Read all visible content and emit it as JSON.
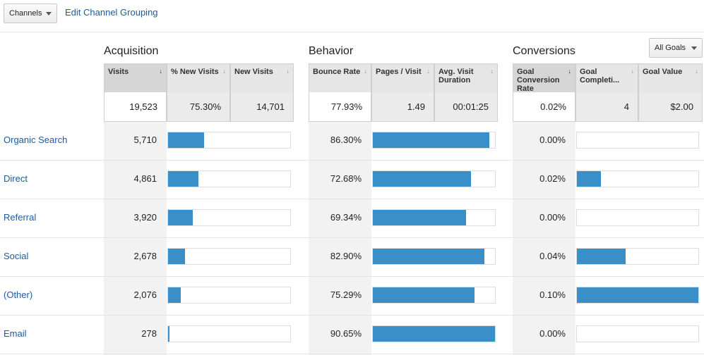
{
  "toolbar": {
    "channels_label": "Channels",
    "edit_link": "Edit Channel Grouping"
  },
  "groups": {
    "acquisition": "Acquisition",
    "behavior": "Behavior",
    "conversions": "Conversions",
    "goals_select": "All Goals"
  },
  "columns": [
    {
      "label": "Visits",
      "sort": "↓"
    },
    {
      "label": "% New Visits",
      "sort": "↓"
    },
    {
      "label": "New Visits",
      "sort": "↓"
    },
    {
      "label": "Bounce Rate",
      "sort": "↓"
    },
    {
      "label": "Pages / Visit",
      "sort": "↓"
    },
    {
      "label": "Avg. Visit Duration",
      "sort": "↓"
    },
    {
      "label": "Goal Conversion Rate",
      "sort": "↓"
    },
    {
      "label": "Goal Completi...",
      "sort": "↓"
    },
    {
      "label": "Goal Value",
      "sort": "↓"
    }
  ],
  "totals": [
    "19,523",
    "75.30%",
    "14,701",
    "77.93%",
    "1.49",
    "00:01:25",
    "0.02%",
    "4",
    "$2.00"
  ],
  "rows": [
    {
      "label": "Organic Search",
      "visits": "5,710",
      "bounce": "86.30%",
      "conv": "0.00%",
      "visits_bar": 0.292,
      "bounce_bar": 0.952,
      "conv_bar": 0.0
    },
    {
      "label": "Direct",
      "visits": "4,861",
      "bounce": "72.68%",
      "conv": "0.02%",
      "visits_bar": 0.249,
      "bounce_bar": 0.802,
      "conv_bar": 0.2
    },
    {
      "label": "Referral",
      "visits": "3,920",
      "bounce": "69.34%",
      "conv": "0.00%",
      "visits_bar": 0.201,
      "bounce_bar": 0.765,
      "conv_bar": 0.0
    },
    {
      "label": "Social",
      "visits": "2,678",
      "bounce": "82.90%",
      "conv": "0.04%",
      "visits_bar": 0.137,
      "bounce_bar": 0.915,
      "conv_bar": 0.4
    },
    {
      "label": "(Other)",
      "visits": "2,076",
      "bounce": "75.29%",
      "conv": "0.10%",
      "visits_bar": 0.106,
      "bounce_bar": 0.83,
      "conv_bar": 1.0
    },
    {
      "label": "Email",
      "visits": "278",
      "bounce": "90.65%",
      "conv": "0.00%",
      "visits_bar": 0.014,
      "bounce_bar": 1.0,
      "conv_bar": 0.0
    }
  ],
  "colors": {
    "bar": "#3a8fc9",
    "link": "#1c5a9e"
  }
}
